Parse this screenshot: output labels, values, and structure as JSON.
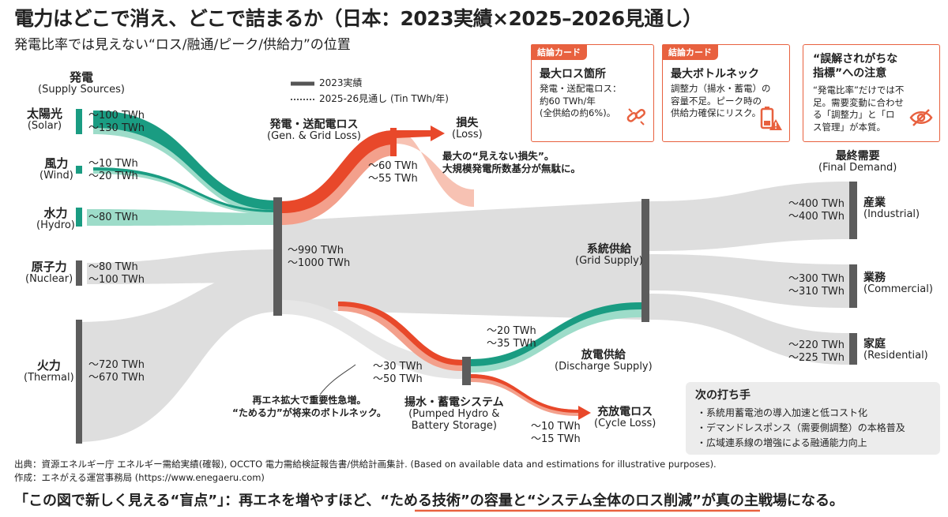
{
  "title": "電力はどこで消え、どこで詰まるか（日本：2023実績×2025–2026見通し）",
  "subtitle": "発電比率では見えない“ロス/融通/ピーク/供給力”の位置",
  "colors": {
    "teal": "#1a9c82",
    "teal_light": "#9ddcc9",
    "red": "#e8482a",
    "red_light": "#f3a08c",
    "gray": "#dedede",
    "node": "#5c5c5c",
    "accent": "#e8613f"
  },
  "legend": {
    "actual": "2023実績",
    "forecast": "2025-26見通し",
    "unit": "(Tin TWh/年)"
  },
  "sources_header": {
    "jp": "発電",
    "en": "(Supply Sources)"
  },
  "sources": [
    {
      "jp": "太陽光",
      "en": "(Solar)",
      "v2023": "〜100 TWh",
      "v2026": "〜130 TWh",
      "color": "teal"
    },
    {
      "jp": "風力",
      "en": "(Wind)",
      "v2023": "〜10 TWh",
      "v2026": "〜20 TWh",
      "color": "teal"
    },
    {
      "jp": "水力",
      "en": "(Hydro)",
      "v2023": "〜80 TWh",
      "v2026": "",
      "color": "teal"
    },
    {
      "jp": "原子力",
      "en": "(Nuclear)",
      "v2023": "〜80 TWh",
      "v2026": "〜100 TWh",
      "color": "gray"
    },
    {
      "jp": "火力",
      "en": "(Thermal)",
      "v2023": "〜720 TWh",
      "v2026": "〜670 TWh",
      "color": "gray"
    }
  ],
  "total": {
    "v2023": "〜990 TWh",
    "v2026": "〜1000 TWh"
  },
  "gen_loss": {
    "jp": "発電・送配電ロス",
    "en": "(Gen. & Grid Loss)",
    "v2023": "〜60 TWh",
    "v2026": "〜55 TWh"
  },
  "loss": {
    "jp": "損失",
    "en": "(Loss)",
    "note1": "最大の“見えない損失”。",
    "note2": "大規模発電所数基分が無駄に。"
  },
  "grid_supply": {
    "jp": "系統供給",
    "en": "(Grid Supply)"
  },
  "final_demand": {
    "jp": "最終需要",
    "en": "(Final Demand)"
  },
  "demands": [
    {
      "jp": "産業",
      "en": "(Industrial)",
      "v2023": "〜400 TWh",
      "v2026": "〜400 TWh"
    },
    {
      "jp": "業務",
      "en": "(Commercial)",
      "v2023": "〜300 TWh",
      "v2026": "〜310 TWh"
    },
    {
      "jp": "家庭",
      "en": "(Residential)",
      "v2023": "〜220 TWh",
      "v2026": "〜225 TWh"
    }
  ],
  "storage": {
    "jp": "揚水・蓄電システム",
    "en1": "(Pumped Hydro &",
    "en2": "Battery Storage)",
    "in2023": "〜30 TWh",
    "in2026": "〜50 TWh"
  },
  "storage_note": {
    "line1": "再エネ拡大で重要性急増。",
    "line2": "“ためる力”が将来のボトルネック。"
  },
  "discharge": {
    "jp": "放電供給",
    "en": "(Discharge Supply)",
    "v2023": "〜20 TWh",
    "v2026": "〜35 TWh"
  },
  "cycle_loss": {
    "jp": "充放電ロス",
    "en": "(Cycle Loss)",
    "v2023": "〜10 TWh",
    "v2026": "〜15 TWh"
  },
  "cards": [
    {
      "tag": "結論カード",
      "heading": "最大ロス箇所",
      "lines": [
        "発電・送配電ロス：",
        "約60 TWh/年",
        "(全供給の約6%)。"
      ],
      "icon": "broken-link-icon"
    },
    {
      "tag": "結論カード",
      "heading": "最大ボトルネック",
      "lines": [
        "調整力（揚水・蓄電）の",
        "容量不足。ピーク時の",
        "供給力確保にリスク。"
      ],
      "icon": "battery-warning-icon"
    },
    {
      "tag": "",
      "heading_lines": [
        "“誤解されがちな",
        "指標”への注意"
      ],
      "lines": [
        "“発電比率”だけでは不",
        "足。需要変動に合わせ",
        "る「調整力」と「ロ",
        "ス管理」が本質。"
      ],
      "icon": "eye-off-icon"
    }
  ],
  "next_steps": {
    "title": "次の打ち手",
    "items": [
      "・系統用蓄電池の導入加速と低コスト化",
      "・デマンドレスポンス（需要側調整）の本格普及",
      "・広域連系線の増強による融通能力向上"
    ]
  },
  "source": "出典：資源エネルギー庁 エネルギー需給実績(確報), OCCTO 電力需給検証報告書/供給計画集計. (Based on available data and estimations for illustrative purposes).",
  "author": "作成：エネがえる運営事務局 (https://www.enegaeru.com)",
  "bottom": {
    "part1": "「この図で新しく見える“盲点”」：再エネを増やすほど、",
    "part2": "“ためる技術”の容量と“システム全体のロス削減”",
    "part3": "が真の主戦場になる。"
  }
}
